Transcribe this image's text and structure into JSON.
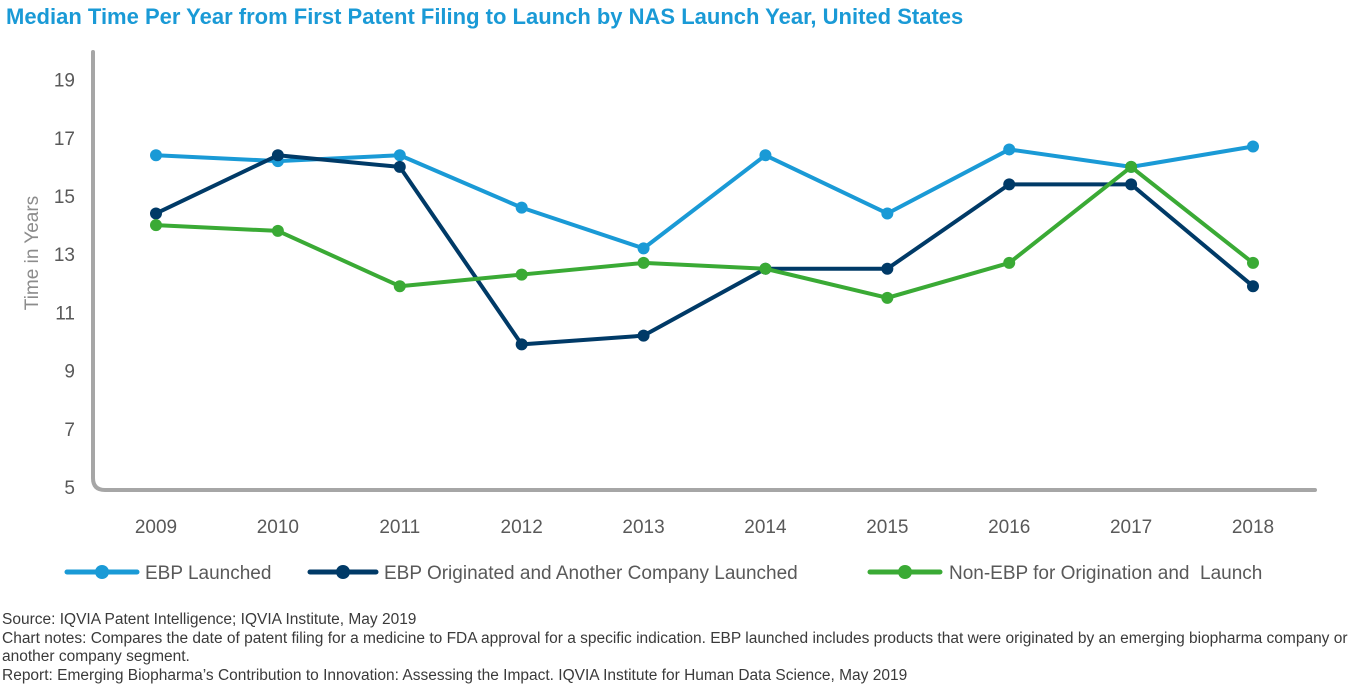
{
  "chart_data": {
    "type": "line",
    "title": "Median Time Per Year from First Patent Filing to Launch by NAS Launch Year, United States",
    "xlabel": "",
    "ylabel": "Time in Years",
    "x": [
      "2009",
      "2010",
      "2011",
      "2012",
      "2013",
      "2014",
      "2015",
      "2016",
      "2017",
      "2018"
    ],
    "yticks": [
      5,
      7,
      9,
      11,
      13,
      15,
      17,
      19
    ],
    "ylim": [
      5,
      20
    ],
    "grid": false,
    "legend_position": "bottom",
    "series": [
      {
        "name": "EBP Launched",
        "color": "#1a9ad6",
        "values": [
          16.4,
          16.2,
          16.4,
          14.6,
          13.2,
          16.4,
          14.4,
          16.6,
          16.0,
          16.7
        ]
      },
      {
        "name": "EBP Originated and Another Company Launched",
        "color": "#003a67",
        "values": [
          14.4,
          16.4,
          16.0,
          9.9,
          10.2,
          12.5,
          12.5,
          15.4,
          15.4,
          11.9
        ]
      },
      {
        "name": "Non-EBP for Origination and  Launch",
        "color": "#3aaa35",
        "values": [
          14.0,
          13.8,
          11.9,
          12.3,
          12.7,
          12.5,
          11.5,
          12.7,
          16.0,
          12.7
        ]
      }
    ]
  },
  "axis_color": "#a6a6a6",
  "tick_label_color": "#595959",
  "notes": {
    "source": "Source: IQVIA Patent Intelligence; IQVIA Institute, May 2019",
    "chart_notes": "Chart notes: Compares the date of patent filing for a medicine to FDA approval for a specific indication. EBP launched includes products that were originated by an emerging biopharma company or another company segment.",
    "report": "Report: Emerging Biopharma’s Contribution to Innovation: Assessing the Impact. IQVIA Institute for Human Data Science, May 2019"
  }
}
